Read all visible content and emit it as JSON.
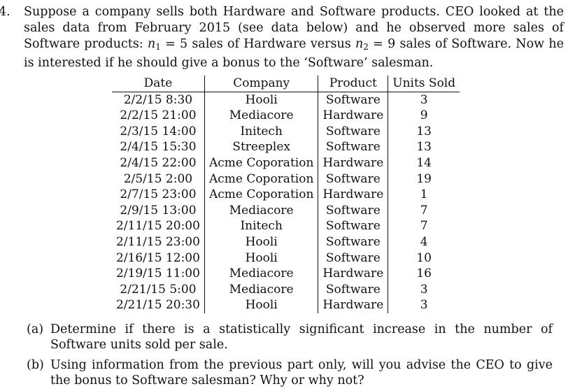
{
  "problem": {
    "number": "4.",
    "text_before_n1": "Suppose a company sells both Hardware and Software products. CEO looked at the sales data from February 2015 (see data below) and he observed more sales of Software products: ",
    "n1_var": "n",
    "n1_sub": "1",
    "n1_value": " = 5",
    "text_between": " sales of Hardware versus ",
    "n2_var": "n",
    "n2_sub": "2",
    "n2_value": " = 9",
    "text_after": " sales of Software. Now he is interested if he should give a bonus to the ‘Software’ salesman."
  },
  "table": {
    "headers": [
      "Date",
      "Company",
      "Product",
      "Units Sold"
    ],
    "rows": [
      [
        "2/2/15 8:30",
        "Hooli",
        "Software",
        "3"
      ],
      [
        "2/2/15 21:00",
        "Mediacore",
        "Hardware",
        "9"
      ],
      [
        "2/3/15 14:00",
        "Initech",
        "Software",
        "13"
      ],
      [
        "2/4/15 15:30",
        "Streeplex",
        "Software",
        "13"
      ],
      [
        "2/4/15 22:00",
        "Acme Coporation",
        "Hardware",
        "14"
      ],
      [
        "2/5/15 2:00",
        "Acme Coporation",
        "Software",
        "19"
      ],
      [
        "2/7/15 23:00",
        "Acme Coporation",
        "Hardware",
        "1"
      ],
      [
        "2/9/15 13:00",
        "Mediacore",
        "Software",
        "7"
      ],
      [
        "2/11/15 20:00",
        "Initech",
        "Software",
        "7"
      ],
      [
        "2/11/15 23:00",
        "Hooli",
        "Software",
        "4"
      ],
      [
        "2/16/15 12:00",
        "Hooli",
        "Software",
        "10"
      ],
      [
        "2/19/15 11:00",
        "Mediacore",
        "Hardware",
        "16"
      ],
      [
        "2/21/15 5:00",
        "Mediacore",
        "Software",
        "3"
      ],
      [
        "2/21/15 20:30",
        "Hooli",
        "Hardware",
        "3"
      ]
    ]
  },
  "parts": [
    {
      "label": "(a)",
      "text": "Determine if there is a statistically significant increase in the number of Software units sold per sale."
    },
    {
      "label": "(b)",
      "text": "Using information from the previous part only, will you advise the CEO to give the bonus to Software salesman? Why or why not?"
    }
  ]
}
